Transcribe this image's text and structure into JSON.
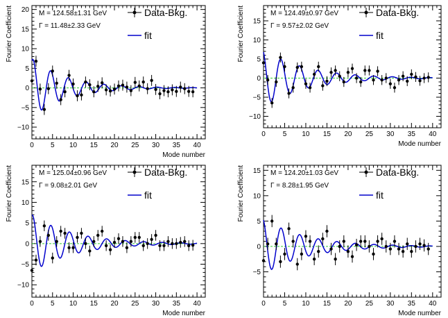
{
  "colors": {
    "data": "#000000",
    "fit": "#0000cc",
    "baseline": "#33cc33",
    "frame": "#000000"
  },
  "chart_data": [
    {
      "type": "scatter",
      "xlabel": "Mode number",
      "ylabel": "Fourier Coefficient",
      "xlim": [
        0,
        42
      ],
      "ylim": [
        -13,
        21
      ],
      "xticks": [
        "0",
        "5",
        "10",
        "15",
        "20",
        "25",
        "30",
        "35",
        "40"
      ],
      "yticks": [
        "−10",
        "−5",
        "0",
        "5",
        "10",
        "15",
        "20"
      ],
      "ytick_values": [
        -10,
        -5,
        0,
        5,
        10,
        15,
        20
      ],
      "annotations": [
        "M = 124.58±1.31 GeV",
        "Γ = 11.48±2.33 GeV"
      ],
      "legend": {
        "data": "Data-Bkg.",
        "fit": "fit"
      },
      "fit": {
        "amp": 7.5,
        "decay": 0.12,
        "period": 4.3,
        "phase": 1.2
      },
      "series": [
        {
          "x": [
            0,
            1,
            2,
            3,
            4,
            5,
            6,
            7,
            8,
            9,
            10,
            11,
            12,
            13,
            14,
            15,
            16,
            17,
            18,
            19,
            20,
            21,
            22,
            23,
            24,
            25,
            26,
            27,
            28,
            29,
            30,
            31,
            32,
            33,
            34,
            35,
            36,
            37,
            38,
            39
          ],
          "y": [
            1.8,
            6.8,
            -0.3,
            -5.5,
            -0.2,
            4.3,
            1.2,
            -3.0,
            -1.0,
            3.2,
            1.0,
            -2.0,
            -1.8,
            1.5,
            0.8,
            -1.0,
            0.4,
            1.3,
            -0.5,
            -0.8,
            -0.3,
            0.5,
            0.7,
            0.2,
            -0.7,
            1.4,
            0.5,
            1.5,
            -0.2,
            1.9,
            -0.4,
            -1.5,
            -0.7,
            -1.0,
            -0.5,
            -0.9,
            0.2,
            -0.2,
            -0.9,
            -1.0
          ],
          "err": [
            1.4,
            1.4,
            1.4,
            1.4,
            1.4,
            1.4,
            1.4,
            1.4,
            1.4,
            1.4,
            1.4,
            1.4,
            1.4,
            1.4,
            1.4,
            1.4,
            1.4,
            1.4,
            1.4,
            1.4,
            1.4,
            1.4,
            1.4,
            1.4,
            1.4,
            1.4,
            1.4,
            1.4,
            1.4,
            1.4,
            1.4,
            1.4,
            1.4,
            1.4,
            1.4,
            1.4,
            1.4,
            1.4,
            1.4,
            1.4
          ]
        }
      ]
    },
    {
      "type": "scatter",
      "xlabel": "Mode number",
      "ylabel": "Fourier Coefficient",
      "xlim": [
        0,
        42
      ],
      "ylim": [
        -13,
        19
      ],
      "xticks": [
        "0",
        "5",
        "10",
        "15",
        "20",
        "25",
        "30",
        "35",
        "40"
      ],
      "yticks": [
        "−10",
        "−5",
        "0",
        "5",
        "10",
        "15"
      ],
      "ytick_values": [
        -10,
        -5,
        0,
        5,
        10,
        15
      ],
      "annotations": [
        "M = 124.49±0.97 GeV",
        "Γ = 9.57±2.02 GeV"
      ],
      "legend": {
        "data": "Data-Bkg.",
        "fit": "fit"
      },
      "fit": {
        "amp": 7.5,
        "decay": 0.1,
        "period": 4.4,
        "phase": 2.0
      },
      "series": [
        {
          "x": [
            0,
            1,
            2,
            3,
            4,
            5,
            6,
            7,
            8,
            9,
            10,
            11,
            12,
            13,
            14,
            15,
            16,
            17,
            18,
            19,
            20,
            21,
            22,
            23,
            24,
            25,
            26,
            27,
            28,
            29,
            30,
            31,
            32,
            33,
            34,
            35,
            36,
            37,
            38,
            39
          ],
          "y": [
            4.0,
            -0.5,
            -6.5,
            -1.0,
            5.4,
            3.0,
            -4.0,
            -2.5,
            2.8,
            3.0,
            -1.5,
            -2.5,
            1.0,
            3.0,
            -2.0,
            -0.8,
            1.5,
            2.0,
            0.5,
            -1.0,
            1.5,
            2.5,
            0.0,
            -1.0,
            2.0,
            2.0,
            -0.5,
            1.8,
            -0.5,
            0.0,
            -1.5,
            -2.5,
            -0.5,
            0.5,
            -0.8,
            1.0,
            0.3,
            -0.7,
            0.0,
            0.2
          ],
          "err": [
            1.3,
            1.3,
            1.3,
            1.3,
            1.3,
            1.3,
            1.3,
            1.3,
            1.3,
            1.3,
            1.3,
            1.3,
            1.3,
            1.3,
            1.3,
            1.3,
            1.3,
            1.3,
            1.3,
            1.3,
            1.3,
            1.3,
            1.3,
            1.3,
            1.3,
            1.3,
            1.3,
            1.3,
            1.3,
            1.3,
            1.3,
            1.3,
            1.3,
            1.3,
            1.3,
            1.3,
            1.3,
            1.3,
            1.3,
            1.3
          ]
        }
      ]
    },
    {
      "type": "scatter",
      "xlabel": "Mode number",
      "ylabel": "Fourier Coefficient",
      "xlim": [
        0,
        42
      ],
      "ylim": [
        -13,
        19
      ],
      "xticks": [
        "0",
        "5",
        "10",
        "15",
        "20",
        "25",
        "30",
        "35",
        "40"
      ],
      "yticks": [
        "−10",
        "−5",
        "0",
        "5",
        "10",
        "15"
      ],
      "ytick_values": [
        -10,
        -5,
        0,
        5,
        10,
        15
      ],
      "annotations": [
        "M = 125.04±0.96 GeV",
        "Γ = 9.08±2.01 GeV"
      ],
      "legend": {
        "data": "Data-Bkg.",
        "fit": "fit"
      },
      "fit": {
        "amp": 7.0,
        "decay": 0.1,
        "period": 4.5,
        "phase": 1.4
      },
      "series": [
        {
          "x": [
            0,
            1,
            2,
            3,
            4,
            5,
            6,
            7,
            8,
            9,
            10,
            11,
            12,
            13,
            14,
            15,
            16,
            17,
            18,
            19,
            20,
            21,
            22,
            23,
            24,
            25,
            26,
            27,
            28,
            29,
            30,
            31,
            32,
            33,
            34,
            35,
            36,
            37,
            38,
            39
          ],
          "y": [
            -6.5,
            -4.0,
            0.5,
            4.3,
            2.0,
            -3.5,
            0.5,
            3.0,
            2.5,
            -1.0,
            -1.0,
            1.5,
            2.5,
            0.0,
            -1.8,
            0.5,
            2.0,
            3.0,
            -0.5,
            -1.5,
            0.3,
            1.2,
            0.5,
            -1.0,
            0.5,
            1.5,
            1.5,
            -0.5,
            0.0,
            1.0,
            2.0,
            -0.5,
            -0.5,
            0.5,
            0.0,
            0.0,
            0.3,
            0.5,
            -0.5,
            -0.4
          ],
          "err": [
            1.3,
            1.3,
            1.3,
            1.3,
            1.3,
            1.3,
            1.3,
            1.3,
            1.3,
            1.3,
            1.3,
            1.3,
            1.3,
            1.3,
            1.3,
            1.3,
            1.3,
            1.3,
            1.3,
            1.3,
            1.3,
            1.3,
            1.3,
            1.3,
            1.3,
            1.3,
            1.3,
            1.3,
            1.3,
            1.3,
            1.3,
            1.3,
            1.3,
            1.3,
            1.3,
            1.3,
            1.3,
            1.3,
            1.3,
            1.3
          ]
        }
      ]
    },
    {
      "type": "scatter",
      "xlabel": "Mode number",
      "ylabel": "Fourier Coefficient",
      "xlim": [
        0,
        42
      ],
      "ylim": [
        -10,
        16
      ],
      "xticks": [
        "0",
        "5",
        "10",
        "15",
        "20",
        "25",
        "30",
        "35",
        "40"
      ],
      "yticks": [
        "−5",
        "0",
        "5",
        "10",
        "15"
      ],
      "ytick_values": [
        -5,
        0,
        5,
        10,
        15
      ],
      "annotations": [
        "M = 124.20±1.03 GeV",
        "Γ = 8.28±1.95 GeV"
      ],
      "legend": {
        "data": "Data-Bkg.",
        "fit": "fit"
      },
      "fit": {
        "amp": 5.5,
        "decay": 0.1,
        "period": 4.4,
        "phase": 1.9
      },
      "series": [
        {
          "x": [
            0,
            1,
            2,
            3,
            4,
            5,
            6,
            7,
            8,
            9,
            10,
            11,
            12,
            13,
            14,
            15,
            16,
            17,
            18,
            19,
            20,
            21,
            22,
            23,
            24,
            25,
            26,
            27,
            28,
            29,
            30,
            31,
            32,
            33,
            34,
            35,
            36,
            37,
            38,
            39
          ],
          "y": [
            -2.8,
            0.5,
            5.0,
            0.5,
            -3.0,
            -1.5,
            3.5,
            1.0,
            -3.5,
            -1.5,
            2.0,
            1.0,
            -2.5,
            -1.0,
            1.5,
            3.0,
            -0.5,
            -2.5,
            0.0,
            1.0,
            -1.0,
            -2.0,
            0.3,
            1.0,
            1.0,
            0.0,
            -1.5,
            1.0,
            1.5,
            0.0,
            -0.5,
            1.0,
            -0.5,
            -1.0,
            0.5,
            -1.0,
            0.0,
            0.5,
            0.2,
            -0.5
          ],
          "err": [
            1.2,
            1.2,
            1.2,
            1.2,
            1.2,
            1.2,
            1.2,
            1.2,
            1.2,
            1.2,
            1.2,
            1.2,
            1.2,
            1.2,
            1.2,
            1.2,
            1.2,
            1.2,
            1.2,
            1.2,
            1.2,
            1.2,
            1.2,
            1.2,
            1.2,
            1.2,
            1.2,
            1.2,
            1.2,
            1.2,
            1.2,
            1.2,
            1.2,
            1.2,
            1.2,
            1.2,
            1.2,
            1.2,
            1.2,
            1.2
          ]
        }
      ]
    }
  ]
}
